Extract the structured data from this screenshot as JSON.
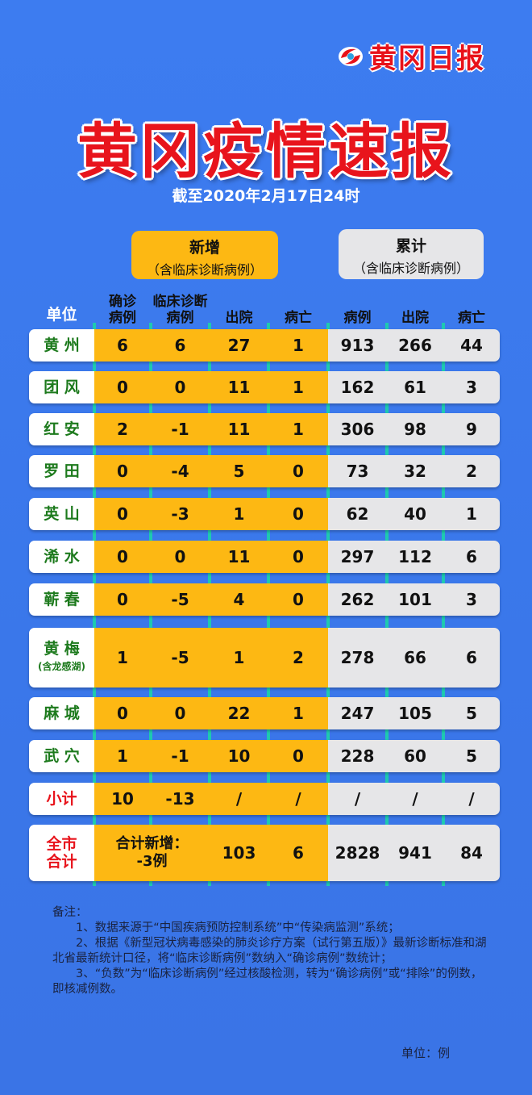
{
  "logo": {
    "text": "黄冈日报",
    "color": "#e8121a"
  },
  "title": "黄冈疫情速报",
  "date": "截至2020年2月17日24时",
  "groups": [
    {
      "title": "新增",
      "subtitle": "（含临床诊断病例）",
      "color": "#fdb813"
    },
    {
      "title": "累计",
      "subtitle": "（含临床诊断病例）",
      "color": "#e6e6e8"
    }
  ],
  "columns": [
    "单位",
    "确诊\n病例",
    "临床诊断\n病例",
    "出院",
    "病亡",
    "病例",
    "出院",
    "病亡"
  ],
  "rows": [
    {
      "name": "黄 州",
      "values": [
        "6",
        "6",
        "27",
        "1",
        "913",
        "266",
        "44"
      ]
    },
    {
      "name": "团 风",
      "values": [
        "0",
        "0",
        "11",
        "1",
        "162",
        "61",
        "3"
      ]
    },
    {
      "name": "红 安",
      "values": [
        "2",
        "-1",
        "11",
        "1",
        "306",
        "98",
        "9"
      ]
    },
    {
      "name": "罗 田",
      "values": [
        "0",
        "-4",
        "5",
        "0",
        "73",
        "32",
        "2"
      ]
    },
    {
      "name": "英 山",
      "values": [
        "0",
        "-3",
        "1",
        "0",
        "62",
        "40",
        "1"
      ]
    },
    {
      "name": "浠 水",
      "values": [
        "0",
        "0",
        "11",
        "0",
        "297",
        "112",
        "6"
      ]
    },
    {
      "name": "蕲 春",
      "values": [
        "0",
        "-5",
        "4",
        "0",
        "262",
        "101",
        "3"
      ]
    },
    {
      "name": "黄 梅",
      "note": "(含龙感湖)",
      "values": [
        "1",
        "-5",
        "1",
        "2",
        "278",
        "66",
        "6"
      ]
    },
    {
      "name": "麻 城",
      "values": [
        "0",
        "0",
        "22",
        "1",
        "247",
        "105",
        "5"
      ]
    },
    {
      "name": "武 穴",
      "values": [
        "1",
        "-1",
        "10",
        "0",
        "228",
        "60",
        "5"
      ]
    }
  ],
  "subtotal": {
    "name": "小计",
    "values": [
      "10",
      "-13",
      "/",
      "/",
      "/",
      "/",
      "/"
    ]
  },
  "total": {
    "name": "全市\n合计",
    "new_total": "合计新增：\n-3例",
    "values": [
      "103",
      "6",
      "2828",
      "941",
      "84"
    ]
  },
  "notes": {
    "heading": "备注：",
    "items": [
      "　　1、数据来源于“中国疾病预防控制系统”中“传染病监测”系统；",
      "　　2、根据《新型冠状病毒感染的肺炎诊疗方案（试行第五版）》最新诊断标准和湖北省最新统计口径，将“临床诊断病例”数纳入“确诊病例”数统计；",
      "　　3、“负数”为“临床诊断病例”经过核酸检测，转为“确诊病例”或“排除”的例数，即核减例数。"
    ],
    "unit": "单位：例"
  }
}
